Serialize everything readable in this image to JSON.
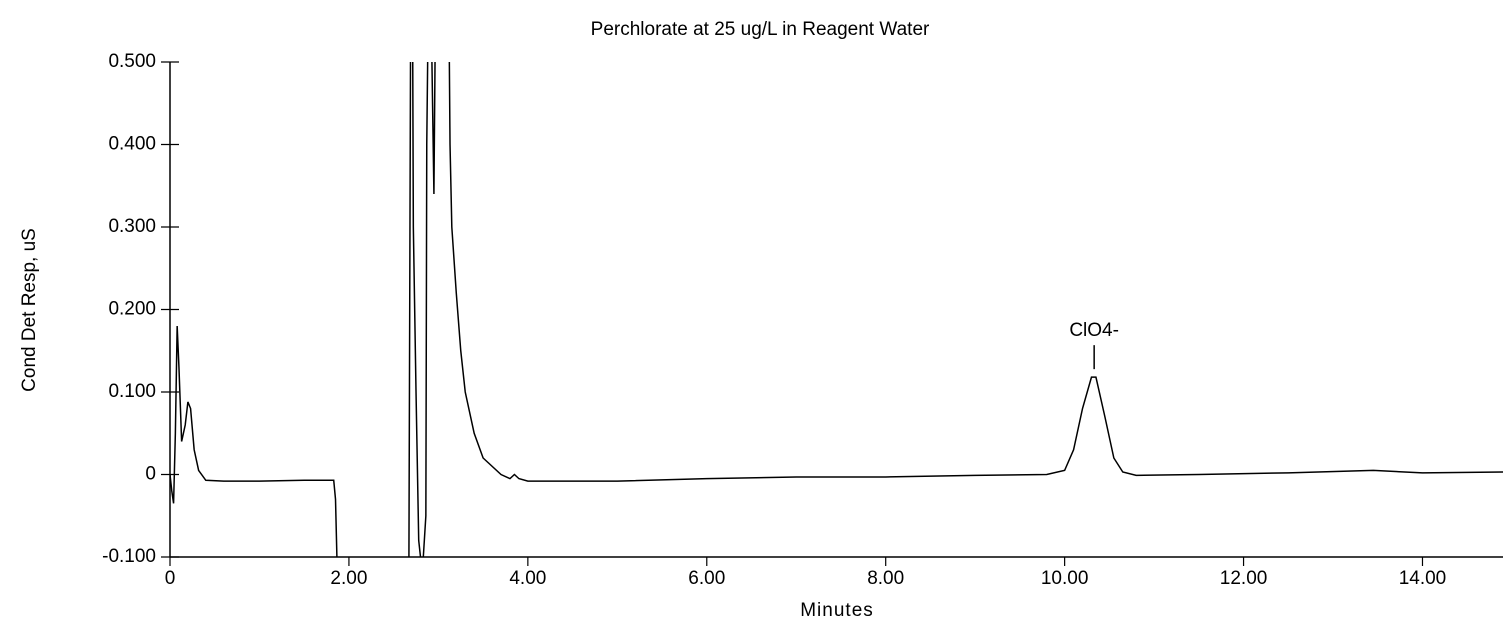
{
  "chart_data": {
    "type": "line",
    "title": "Perchlorate at 25 ug/L in Reagent Water",
    "xlabel": "Minutes",
    "ylabel": "Cond Det Resp, uS",
    "xlim": [
      0,
      14.9
    ],
    "ylim": [
      -0.1,
      0.5
    ],
    "xticks": [
      0,
      {
        "value": 2,
        "label": "2.00"
      },
      {
        "value": 4,
        "label": "4.00"
      },
      {
        "value": 6,
        "label": "6.00"
      },
      {
        "value": 8,
        "label": "8.00"
      },
      {
        "value": 10,
        "label": "10.00"
      },
      {
        "value": 12,
        "label": "12.00"
      },
      {
        "value": 14,
        "label": "14.00"
      }
    ],
    "yticks": [
      {
        "value": -0.1,
        "label": "-0.100"
      },
      0,
      {
        "value": 0.1,
        "label": "0.100"
      },
      {
        "value": 0.2,
        "label": "0.200"
      },
      {
        "value": 0.3,
        "label": "0.300"
      },
      {
        "value": 0.4,
        "label": "0.400"
      },
      {
        "value": 0.5,
        "label": "0.500"
      }
    ],
    "grid": false,
    "color": "#000000",
    "x": [
      0,
      0.02,
      0.04,
      0.06,
      0.08,
      0.1,
      0.13,
      0.17,
      0.2,
      0.23,
      0.27,
      0.32,
      0.4,
      0.6,
      1.0,
      1.5,
      1.83,
      1.85,
      1.87,
      2.67,
      2.7,
      2.72,
      2.75,
      2.78,
      2.82,
      2.86,
      2.87,
      2.9,
      2.95,
      2.97,
      3.1,
      3.13,
      3.15,
      3.2,
      3.25,
      3.3,
      3.4,
      3.5,
      3.7,
      3.8,
      3.85,
      3.9,
      4.0,
      5.0,
      6.0,
      7.0,
      8.0,
      9.0,
      9.8,
      10.0,
      10.1,
      10.2,
      10.3,
      10.35,
      10.45,
      10.55,
      10.65,
      10.8,
      11.5,
      12.5,
      13.45,
      14.0,
      14.9
    ],
    "values": [
      0,
      -0.02,
      -0.035,
      0.05,
      0.18,
      0.13,
      0.04,
      0.06,
      0.088,
      0.08,
      0.03,
      0.005,
      -0.007,
      -0.008,
      -0.008,
      -0.007,
      -0.007,
      -0.03,
      -0.12,
      -0.12,
      0.9,
      0.3,
      0.1,
      -0.08,
      -0.12,
      -0.05,
      0.4,
      0.7,
      0.34,
      0.6,
      0.8,
      0.4,
      0.3,
      0.22,
      0.15,
      0.1,
      0.05,
      0.02,
      0.0,
      -0.005,
      0.0,
      -0.005,
      -0.008,
      -0.008,
      -0.005,
      -0.003,
      -0.003,
      -0.001,
      0.0,
      0.005,
      0.03,
      0.08,
      0.118,
      0.118,
      0.07,
      0.02,
      0.003,
      -0.001,
      0,
      0.002,
      0.005,
      0.002,
      0.003
    ],
    "annotations": [
      {
        "text": "ClO4-",
        "x": 10.33,
        "y": 0.118
      }
    ]
  }
}
